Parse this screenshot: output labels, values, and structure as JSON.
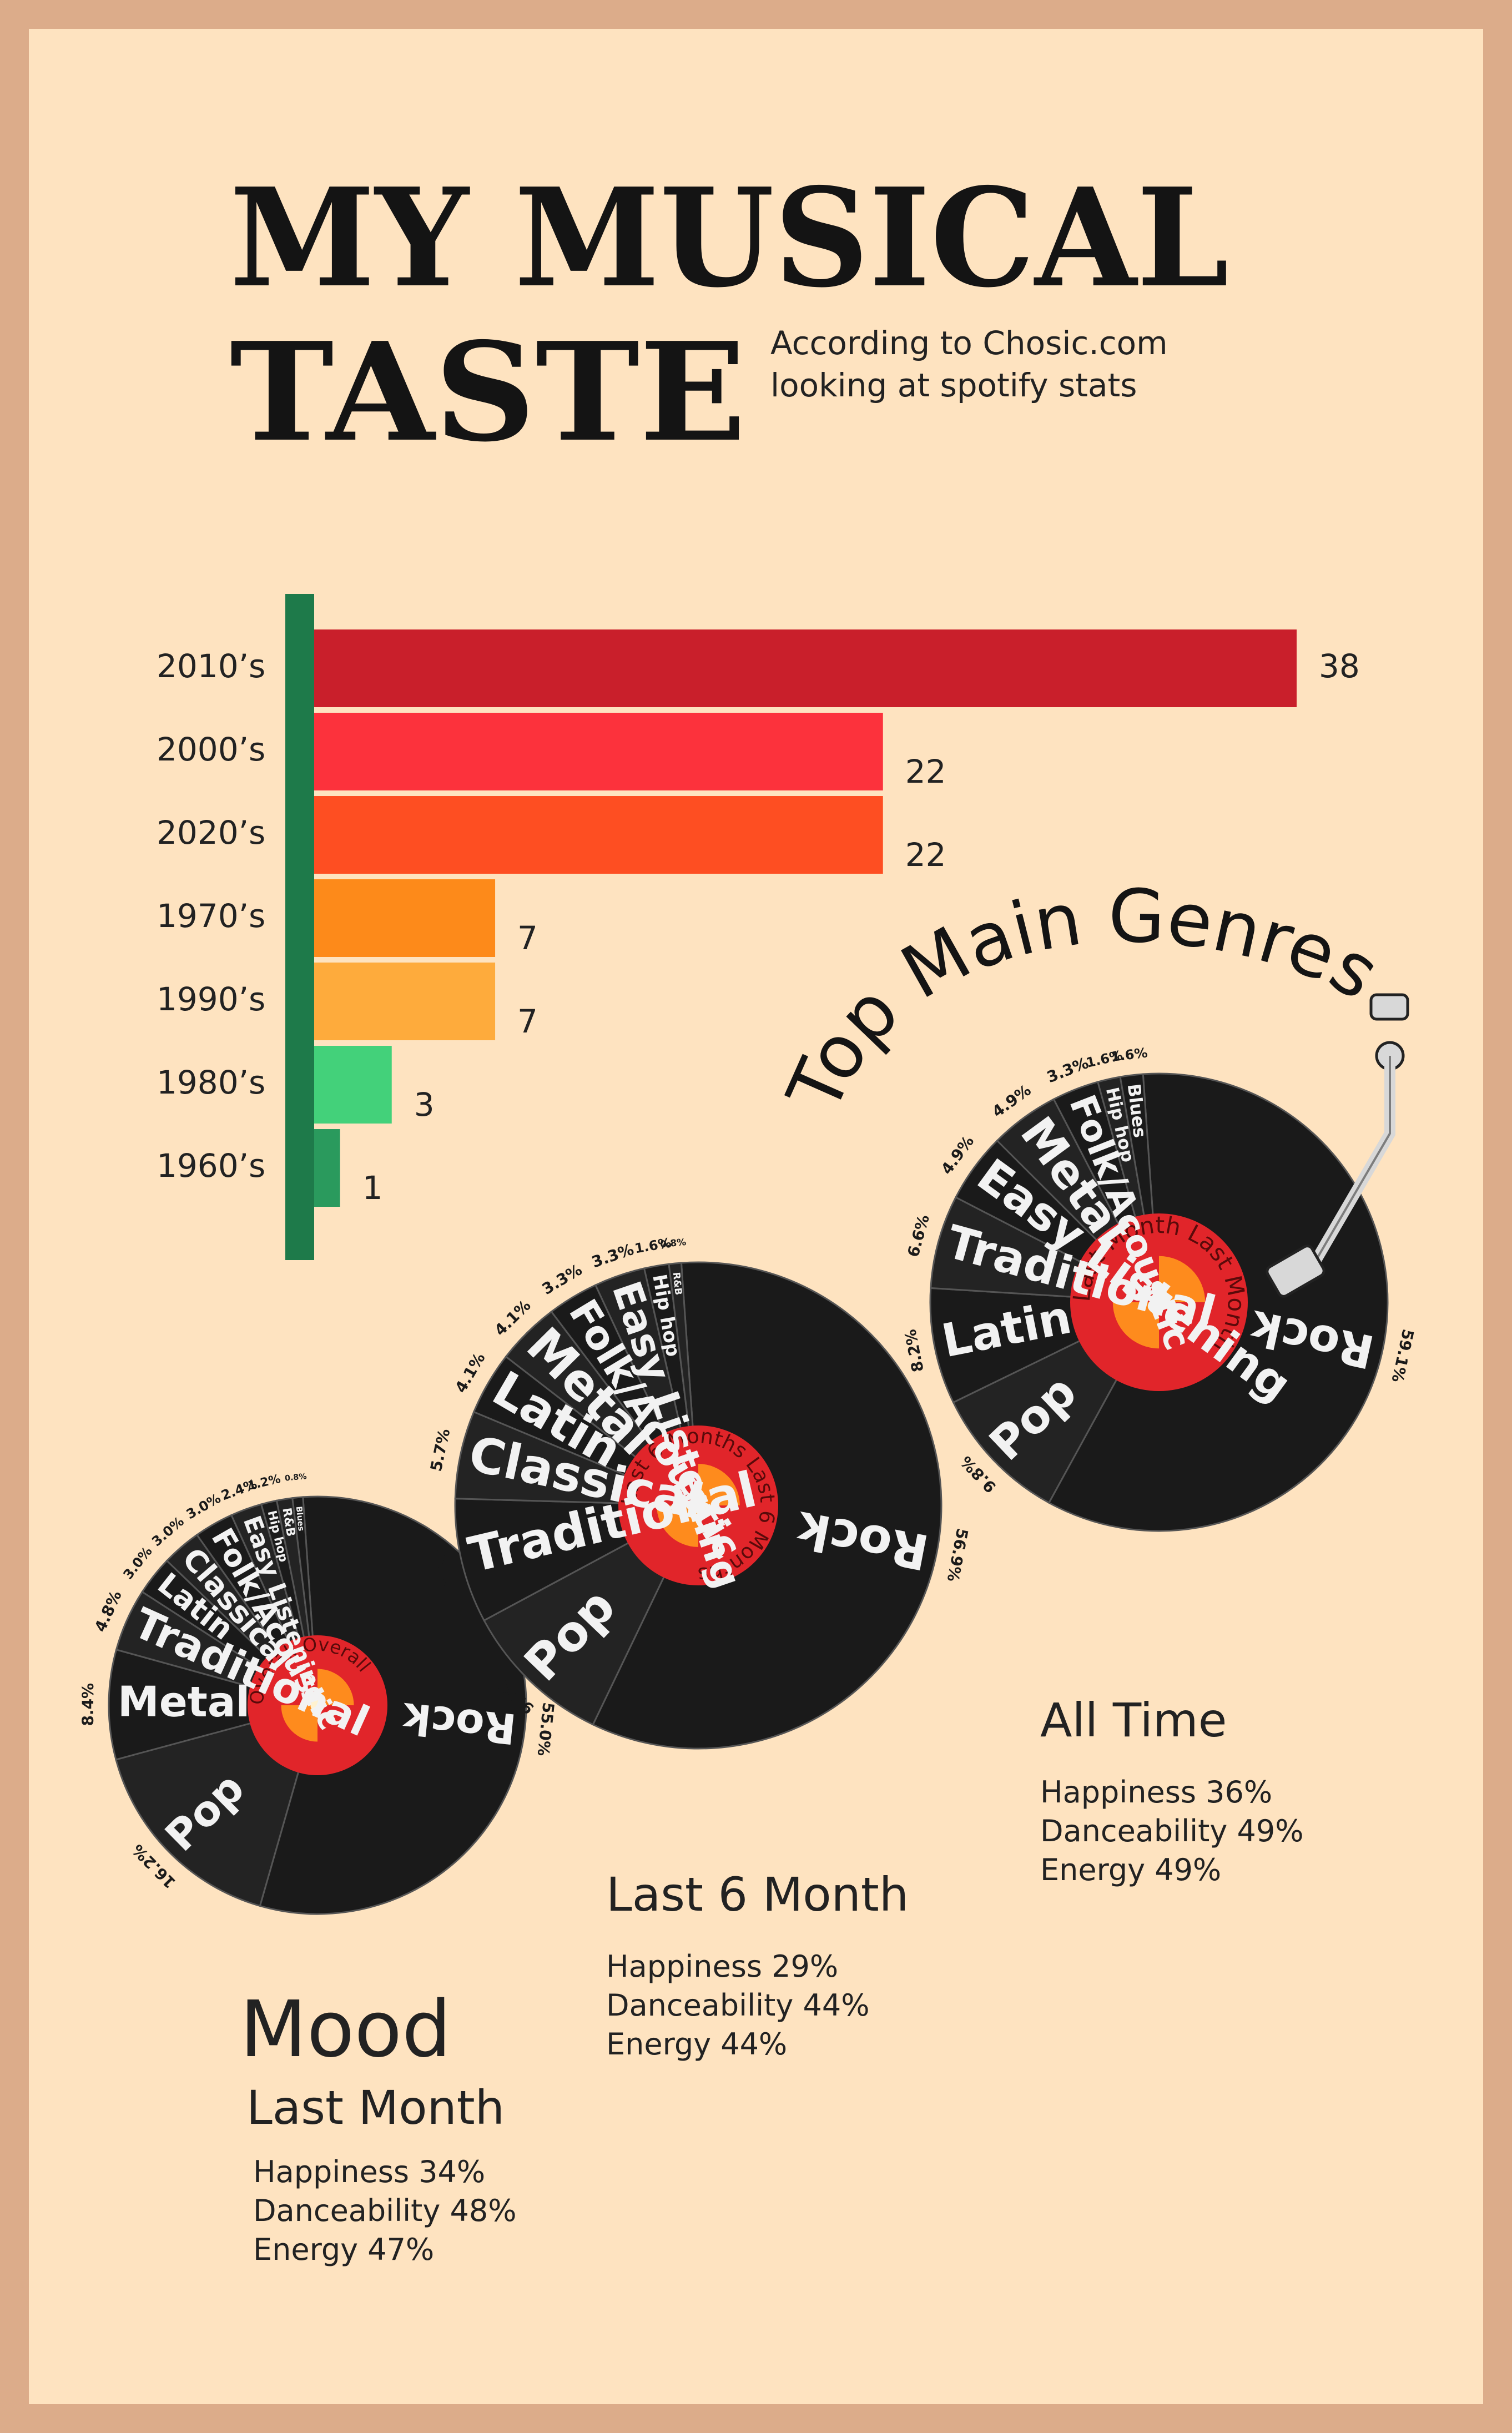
{
  "title": {
    "line1": "MY MUSICAL",
    "line2": "TASTE"
  },
  "subtitle": {
    "line1": "According to Chosic.com",
    "line2": "looking at spotify stats"
  },
  "chart_data": [
    {
      "type": "bar",
      "orientation": "horizontal",
      "categories": [
        "2010’s",
        "2000’s",
        "2020’s",
        "1970’s",
        "1990’s",
        "1980’s",
        "1960’s"
      ],
      "values": [
        38,
        22,
        22,
        7,
        7,
        3,
        1
      ],
      "colors": [
        "#c91f2b",
        "#fc323c",
        "#fe4e22",
        "#fd8a1a",
        "#feab3c",
        "#43d17a",
        "#2a9a5d"
      ],
      "axis_color": "#1e7a4a",
      "xlim": [
        0,
        38
      ]
    },
    {
      "type": "pie",
      "label": "Overall",
      "categories": [
        "Rock",
        "Pop",
        "Metal",
        "Traditional",
        "Latin",
        "Classical",
        "Folk/Acoustic",
        "Easy Listening",
        "Hip Hop",
        "R&B",
        "Blues"
      ],
      "display_labels": [
        "Rock",
        "Pop",
        "Metal",
        "Traditional",
        "Latin",
        "Classical",
        "Folk/Acoustic",
        "Easy Listening",
        "Hip hop",
        "R&B",
        "Blues"
      ],
      "values": [
        55.0,
        16.2,
        8.4,
        4.8,
        3.0,
        3.0,
        3.0,
        2.4,
        1.2,
        1.2,
        0.8
      ],
      "percent_labels": [
        "55.0%",
        "16.2%",
        "8.4%",
        "4.8%",
        "3.0%",
        "3.0%",
        "3.0%",
        "2.4%",
        "1.2%",
        "",
        "0.8%"
      ]
    },
    {
      "type": "pie",
      "label": "Last 6 Months",
      "categories": [
        "Rock",
        "Pop",
        "Traditional",
        "Classical",
        "Latin",
        "Metal",
        "Folk/Acoustic",
        "Easy Listening",
        "Hip Hop",
        "R&B"
      ],
      "display_labels": [
        "Rock",
        "Pop",
        "Traditional",
        "Classical",
        "Latin",
        "Metal",
        "Folk/Acoustic",
        "Easy Listening",
        "Hip hop",
        "R&B"
      ],
      "values": [
        56.9,
        9.8,
        8.1,
        5.7,
        4.1,
        4.1,
        3.3,
        3.3,
        1.6,
        0.8
      ],
      "percent_labels": [
        "56.9%",
        "9.8%",
        "8.1%",
        "5.7%",
        "4.1%",
        "4.1%",
        "3.3%",
        "3.3%",
        "1.6%",
        "0.8%"
      ]
    },
    {
      "type": "pie",
      "label": "Last Month",
      "categories": [
        "Rock",
        "Pop",
        "Latin",
        "Traditional",
        "Easy Listening",
        "Metal",
        "Folk/Acoustic",
        "Hip Hop",
        "Blues"
      ],
      "display_labels": [
        "Rock",
        "Pop",
        "Latin",
        "Traditional",
        "Easy Listening",
        "Metal",
        "Folk/Acoustic",
        "Hip hop",
        "Blues"
      ],
      "values": [
        59.1,
        9.8,
        8.2,
        6.6,
        4.9,
        4.9,
        3.3,
        1.6,
        1.6
      ],
      "percent_labels": [
        "59.1%",
        "9.8%",
        "8.2%",
        "6.6%",
        "4.9%",
        "4.9%",
        "3.3%",
        "1.6%",
        "1.6%"
      ]
    }
  ],
  "genre_title": "Top Main Genres",
  "mood": {
    "title": "Mood",
    "last_month": {
      "heading": "Last Month",
      "happiness": "Happiness 34%",
      "danceability": "Danceability 48%",
      "energy": "Energy 47%"
    },
    "last_6": {
      "heading": "Last 6 Month",
      "happiness": "Happiness 29%",
      "danceability": "Danceability 44%",
      "energy": "Energy 44%"
    },
    "all_time": {
      "heading": "All Time",
      "happiness": "Happiness 36%",
      "danceability": "Danceability 49%",
      "energy": "Energy 49%"
    }
  },
  "colors": {
    "background": "#fee3c0",
    "frame": "#dcac8a",
    "vinyl": "#1c1c1c",
    "label_red": "#e1252a",
    "label_orange": "#fe8b1d"
  }
}
